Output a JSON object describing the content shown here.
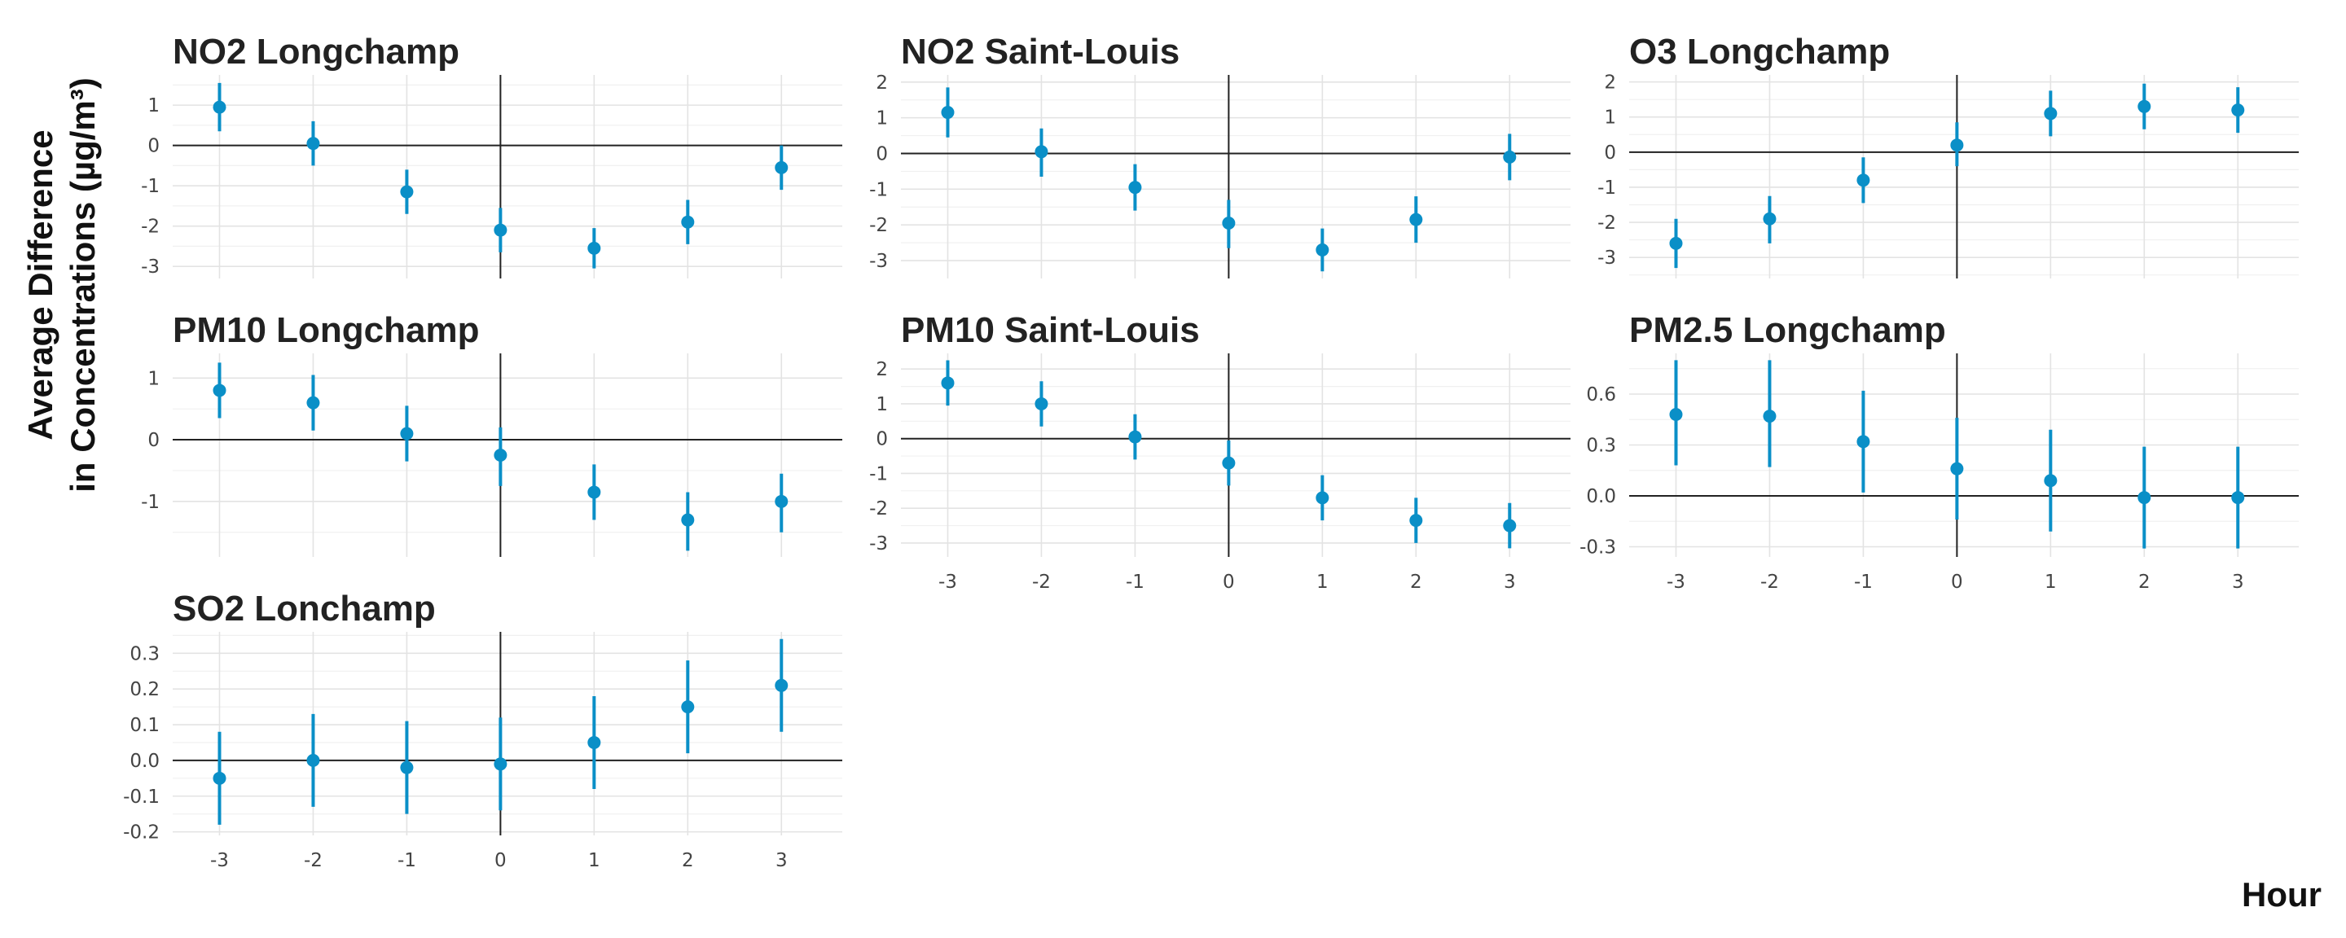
{
  "figure": {
    "y_title_line1": "Average Difference",
    "y_title_line2": "in Concentrations (µg/m³)",
    "x_title": "Hour"
  },
  "colors": {
    "point": "#0a8fc7",
    "reference_line": "#222222",
    "grid": "#e3e3e3"
  },
  "chart_data": [
    {
      "type": "scatter",
      "title": "NO2 Longchamp",
      "x": [
        -3,
        -2,
        -1,
        0,
        1,
        2,
        3
      ],
      "y": [
        0.95,
        0.05,
        -1.15,
        -2.1,
        -2.55,
        -1.9,
        -0.55
      ],
      "y_lower": [
        0.35,
        -0.5,
        -1.7,
        -2.65,
        -3.05,
        -2.45,
        -1.1
      ],
      "y_upper": [
        1.55,
        0.6,
        -0.6,
        -1.55,
        -2.05,
        -1.35,
        0.0
      ],
      "xlim": [
        -3.5,
        3.65
      ],
      "ylim": [
        -3.3,
        1.75
      ],
      "yticks": [
        -3,
        -2,
        -1,
        0,
        1
      ],
      "ytick_labels": [
        "-3",
        "-2",
        "-1",
        "0",
        "1"
      ],
      "xticks": [
        -3,
        -2,
        -1,
        0,
        1,
        2,
        3
      ],
      "xtick_labels": [],
      "grid": true
    },
    {
      "type": "scatter",
      "title": "NO2 Saint-Louis",
      "x": [
        -3,
        -2,
        -1,
        0,
        1,
        2,
        3
      ],
      "y": [
        1.15,
        0.05,
        -0.95,
        -1.95,
        -2.7,
        -1.85,
        -0.1
      ],
      "y_lower": [
        0.45,
        -0.65,
        -1.6,
        -2.65,
        -3.3,
        -2.5,
        -0.75
      ],
      "y_upper": [
        1.85,
        0.7,
        -0.3,
        -1.3,
        -2.1,
        -1.2,
        0.55
      ],
      "xlim": [
        -3.5,
        3.65
      ],
      "ylim": [
        -3.5,
        2.2
      ],
      "yticks": [
        -3,
        -2,
        -1,
        0,
        1,
        2
      ],
      "ytick_labels": [
        "-3",
        "-2",
        "-1",
        "0",
        "1",
        "2"
      ],
      "xticks": [
        -3,
        -2,
        -1,
        0,
        1,
        2,
        3
      ],
      "xtick_labels": [],
      "grid": true
    },
    {
      "type": "scatter",
      "title": "O3 Longchamp",
      "x": [
        -3,
        -2,
        -1,
        0,
        1,
        2,
        3
      ],
      "y": [
        -2.6,
        -1.9,
        -0.8,
        0.2,
        1.1,
        1.3,
        1.2
      ],
      "y_lower": [
        -3.3,
        -2.6,
        -1.45,
        -0.4,
        0.45,
        0.65,
        0.55
      ],
      "y_upper": [
        -1.9,
        -1.25,
        -0.15,
        0.85,
        1.75,
        1.95,
        1.85
      ],
      "xlim": [
        -3.5,
        3.65
      ],
      "ylim": [
        -3.6,
        2.2
      ],
      "yticks": [
        -3,
        -2,
        -1,
        0,
        1,
        2
      ],
      "ytick_labels": [
        "-3",
        "-2",
        "-1",
        "0",
        "1",
        "2"
      ],
      "xticks": [
        -3,
        -2,
        -1,
        0,
        1,
        2,
        3
      ],
      "xtick_labels": [],
      "grid": true
    },
    {
      "type": "scatter",
      "title": "PM10 Longchamp",
      "x": [
        -3,
        -2,
        -1,
        0,
        1,
        2,
        3
      ],
      "y": [
        0.8,
        0.6,
        0.1,
        -0.25,
        -0.85,
        -1.3,
        -1.0
      ],
      "y_lower": [
        0.35,
        0.15,
        -0.35,
        -0.75,
        -1.3,
        -1.8,
        -1.5
      ],
      "y_upper": [
        1.25,
        1.05,
        0.55,
        0.2,
        -0.4,
        -0.85,
        -0.55
      ],
      "xlim": [
        -3.5,
        3.65
      ],
      "ylim": [
        -1.9,
        1.4
      ],
      "yticks": [
        -1,
        0,
        1
      ],
      "ytick_labels": [
        "-1",
        "0",
        "1"
      ],
      "xticks": [
        -3,
        -2,
        -1,
        0,
        1,
        2,
        3
      ],
      "xtick_labels": [],
      "grid": true
    },
    {
      "type": "scatter",
      "title": "PM10 Saint-Louis",
      "x": [
        -3,
        -2,
        -1,
        0,
        1,
        2,
        3
      ],
      "y": [
        1.6,
        1.0,
        0.05,
        -0.7,
        -1.7,
        -2.35,
        -2.5
      ],
      "y_lower": [
        0.95,
        0.35,
        -0.6,
        -1.35,
        -2.35,
        -3.0,
        -3.15
      ],
      "y_upper": [
        2.25,
        1.65,
        0.7,
        -0.05,
        -1.05,
        -1.7,
        -1.85
      ],
      "xlim": [
        -3.5,
        3.65
      ],
      "ylim": [
        -3.4,
        2.45
      ],
      "yticks": [
        -3,
        -2,
        -1,
        0,
        1,
        2
      ],
      "ytick_labels": [
        "-3",
        "-2",
        "-1",
        "0",
        "1",
        "2"
      ],
      "xticks": [
        -3,
        -2,
        -1,
        0,
        1,
        2,
        3
      ],
      "xtick_labels": [
        "-3",
        "-2",
        "-1",
        "0",
        "1",
        "2",
        "3"
      ],
      "grid": true
    },
    {
      "type": "scatter",
      "title": "PM2.5 Longchamp",
      "x": [
        -3,
        -2,
        -1,
        0,
        1,
        2,
        3
      ],
      "y": [
        0.48,
        0.47,
        0.32,
        0.16,
        0.09,
        -0.01,
        -0.01
      ],
      "y_lower": [
        0.18,
        0.17,
        0.02,
        -0.14,
        -0.21,
        -0.31,
        -0.31
      ],
      "y_upper": [
        0.8,
        0.8,
        0.62,
        0.46,
        0.39,
        0.29,
        0.29
      ],
      "xlim": [
        -3.5,
        3.65
      ],
      "ylim": [
        -0.36,
        0.84
      ],
      "yticks": [
        -0.3,
        0.0,
        0.3,
        0.6
      ],
      "ytick_labels": [
        "-0.3",
        "0.0",
        "0.3",
        "0.6"
      ],
      "xticks": [
        -3,
        -2,
        -1,
        0,
        1,
        2,
        3
      ],
      "xtick_labels": [
        "-3",
        "-2",
        "-1",
        "0",
        "1",
        "2",
        "3"
      ],
      "grid": true
    },
    {
      "type": "scatter",
      "title": "SO2 Lonchamp",
      "x": [
        -3,
        -2,
        -1,
        0,
        1,
        2,
        3
      ],
      "y": [
        -0.05,
        0.0,
        -0.02,
        -0.01,
        0.05,
        0.15,
        0.21
      ],
      "y_lower": [
        -0.18,
        -0.13,
        -0.15,
        -0.14,
        -0.08,
        0.02,
        0.08
      ],
      "y_upper": [
        0.08,
        0.13,
        0.11,
        0.12,
        0.18,
        0.28,
        0.34
      ],
      "xlim": [
        -3.5,
        3.65
      ],
      "ylim": [
        -0.21,
        0.36
      ],
      "yticks": [
        -0.2,
        -0.1,
        0.0,
        0.1,
        0.2,
        0.3
      ],
      "ytick_labels": [
        "-0.2",
        "-0.1",
        "0.0",
        "0.1",
        "0.2",
        "0.3"
      ],
      "xticks": [
        -3,
        -2,
        -1,
        0,
        1,
        2,
        3
      ],
      "xtick_labels": [
        "-3",
        "-2",
        "-1",
        "0",
        "1",
        "2",
        "3"
      ],
      "grid": true
    }
  ]
}
